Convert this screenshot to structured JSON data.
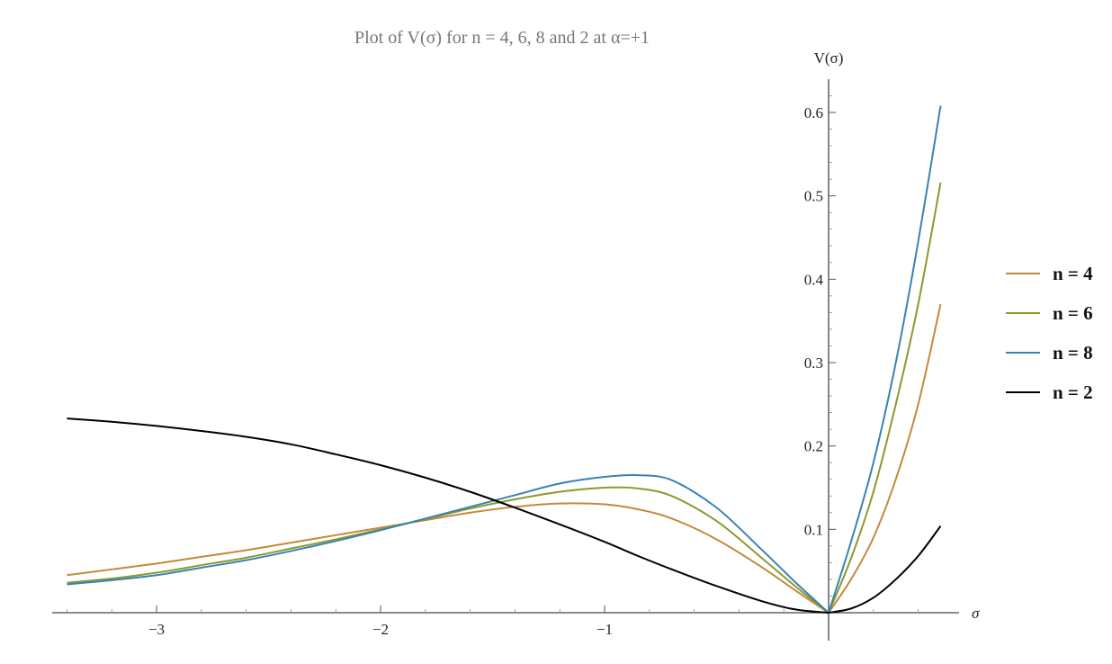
{
  "chart_data": {
    "type": "line",
    "title": "Plot of V(σ) for n = 4, 6, 8 and 2 at α=+1",
    "xlabel": "σ",
    "ylabel": "V(σ)",
    "xlim": [
      -3.4,
      0.5
    ],
    "ylim": [
      0,
      0.62
    ],
    "x_ticks": [
      -3,
      -2,
      -1
    ],
    "x_tick_labels": [
      "−3",
      "−2",
      "−1"
    ],
    "y_ticks": [
      0.1,
      0.2,
      0.3,
      0.4,
      0.5,
      0.6
    ],
    "y_tick_labels": [
      "0.1",
      "0.2",
      "0.3",
      "0.4",
      "0.5",
      "0.6"
    ],
    "grid": false,
    "legend_position": "right",
    "x": [
      -3.4,
      -3.2,
      -3.0,
      -2.8,
      -2.6,
      -2.4,
      -2.2,
      -2.0,
      -1.8,
      -1.6,
      -1.4,
      -1.2,
      -1.0,
      -0.85,
      -0.7,
      -0.5,
      -0.3,
      -0.15,
      0.0,
      0.1,
      0.2,
      0.3,
      0.4,
      0.5
    ],
    "series": [
      {
        "name": "n = 4",
        "color": "#c28a3c",
        "values": [
          0.045,
          0.052,
          0.059,
          0.067,
          0.075,
          0.084,
          0.093,
          0.102,
          0.111,
          0.12,
          0.127,
          0.131,
          0.13,
          0.124,
          0.113,
          0.088,
          0.055,
          0.027,
          0.0,
          0.04,
          0.09,
          0.16,
          0.25,
          0.37
        ]
      },
      {
        "name": "n = 6",
        "color": "#8a9a2e",
        "values": [
          0.036,
          0.041,
          0.048,
          0.057,
          0.066,
          0.077,
          0.088,
          0.1,
          0.112,
          0.125,
          0.136,
          0.145,
          0.15,
          0.149,
          0.14,
          0.11,
          0.066,
          0.032,
          0.0,
          0.065,
          0.145,
          0.25,
          0.37,
          0.516
        ]
      },
      {
        "name": "n = 8",
        "color": "#3a82b3",
        "values": [
          0.034,
          0.039,
          0.045,
          0.054,
          0.063,
          0.074,
          0.086,
          0.099,
          0.113,
          0.127,
          0.141,
          0.155,
          0.163,
          0.165,
          0.159,
          0.126,
          0.076,
          0.037,
          0.0,
          0.085,
          0.18,
          0.3,
          0.445,
          0.608
        ]
      },
      {
        "name": "n = 2",
        "color": "#000000",
        "values": [
          0.233,
          0.229,
          0.224,
          0.218,
          0.211,
          0.202,
          0.19,
          0.177,
          0.162,
          0.145,
          0.126,
          0.106,
          0.085,
          0.068,
          0.052,
          0.032,
          0.014,
          0.004,
          0.0,
          0.005,
          0.018,
          0.04,
          0.068,
          0.104
        ]
      }
    ]
  }
}
